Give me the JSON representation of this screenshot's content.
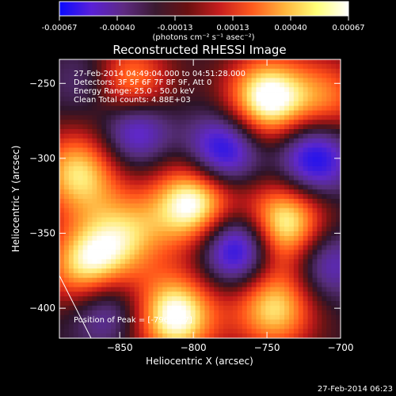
{
  "colorbar": {
    "ticks": [
      "-0.00067",
      "-0.00040",
      "-0.00013",
      "0.00013",
      "0.00040",
      "0.00067"
    ],
    "units": "(photons cm⁻² s⁻¹ asec⁻²)",
    "stops": [
      "#0a0aff",
      "#5a20d8",
      "#5e2a82",
      "#3a1a30",
      "#6b1010",
      "#c81e1e",
      "#ff5a1e",
      "#ffb43c",
      "#ffff78",
      "#ffffff"
    ]
  },
  "chart_data": {
    "type": "heatmap",
    "title": "Reconstructed RHESSI Image",
    "xlabel": "Heliocentric X (arcsec)",
    "ylabel": "Heliocentric Y (arcsec)",
    "xlim": [
      -891,
      -700
    ],
    "ylim": [
      -420,
      -234
    ],
    "xticks": [
      {
        "value": -850,
        "label": "−850"
      },
      {
        "value": -800,
        "label": "−800"
      },
      {
        "value": -750,
        "label": "−750"
      },
      {
        "value": -700,
        "label": "−700"
      }
    ],
    "yticks": [
      {
        "value": -250,
        "label": "−250"
      },
      {
        "value": -300,
        "label": "−300"
      },
      {
        "value": -350,
        "label": "−350"
      },
      {
        "value": -400,
        "label": "−400"
      }
    ],
    "annotations": {
      "time": "27-Feb-2014 04:49:04.000 to 04:51:28.000",
      "detectors": "Detectors: 3F 5F 6F 7F 8F 9F, Att 0",
      "energy": "Energy Range: 25.0 - 50.0 keV",
      "clean": "Clean     Total counts: 4.88E+03",
      "peak": "Position of Peak = [-796,-327]"
    },
    "peak": {
      "x": -796,
      "y": -327
    },
    "positive_blobs": [
      {
        "x": -750,
        "y": -260,
        "amp": 1.0
      },
      {
        "x": -845,
        "y": -252,
        "amp": 0.75
      },
      {
        "x": -878,
        "y": -310,
        "amp": 0.8
      },
      {
        "x": -800,
        "y": -330,
        "amp": 1.0
      },
      {
        "x": -738,
        "y": -344,
        "amp": 0.95
      },
      {
        "x": -872,
        "y": -372,
        "amp": 0.85
      },
      {
        "x": -812,
        "y": -405,
        "amp": 1.0
      },
      {
        "x": -745,
        "y": -400,
        "amp": 0.8
      },
      {
        "x": -708,
        "y": -260,
        "amp": 0.5
      },
      {
        "x": -845,
        "y": -350,
        "amp": 0.6
      }
    ],
    "negative_blobs": [
      {
        "x": -780,
        "y": -295,
        "amp": 0.8
      },
      {
        "x": -718,
        "y": -300,
        "amp": 0.8
      },
      {
        "x": -770,
        "y": -360,
        "amp": 0.9
      },
      {
        "x": -840,
        "y": -280,
        "amp": 0.7
      },
      {
        "x": -860,
        "y": -400,
        "amp": 0.5
      },
      {
        "x": -870,
        "y": -250,
        "amp": 0.35
      },
      {
        "x": -710,
        "y": -370,
        "amp": 0.5
      }
    ]
  },
  "timestamp": "27-Feb-2014 06:23"
}
